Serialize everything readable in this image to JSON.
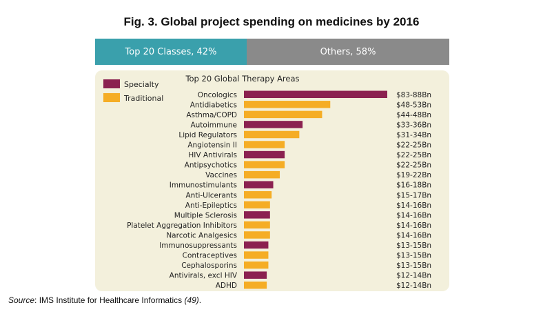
{
  "figure": {
    "title": "Fig. 3. Global project spending on medicines by 2016",
    "source_label": "Source",
    "source_text": ": IMS Institute for Healthcare Informatics ",
    "source_ref": "(49)",
    "source_end": "."
  },
  "split": {
    "left_label": "Top 20 Classes, 42%",
    "right_label": "Others, 58%",
    "left_color": "#3aa0ac",
    "right_color": "#8a8a8a"
  },
  "colors": {
    "Specialty": "#8b2150",
    "Traditional": "#f5ad25"
  },
  "chart_data": {
    "type": "bar",
    "orientation": "horizontal",
    "title": "Top 20 Global Therapy Areas",
    "legend": [
      "Specialty",
      "Traditional"
    ],
    "legend_position": "top-left",
    "categories": [
      "Oncologics",
      "Antidiabetics",
      "Asthma/COPD",
      "Autoimmune",
      "Lipid Regulators",
      "Angiotensin II",
      "HIV Antivirals",
      "Antipsychotics",
      "Vaccines",
      "Immunostimulants",
      "Anti-Ulcerants",
      "Anti-Epileptics",
      "Multiple Sclerosis",
      "Platelet Aggregation Inhibitors",
      "Narcotic Analgesics",
      "Immunosuppressants",
      "Contraceptives",
      "Cephalosporins",
      "Antivirals, excl HIV",
      "ADHD"
    ],
    "values": [
      88,
      53,
      48,
      36,
      34,
      25,
      25,
      25,
      22,
      18,
      17,
      16,
      16,
      16,
      16,
      15,
      15,
      15,
      14,
      14
    ],
    "value_labels": [
      "$83-88Bn",
      "$48-53Bn",
      "$44-48Bn",
      "$33-36Bn",
      "$31-34Bn",
      "$22-25Bn",
      "$22-25Bn",
      "$22-25Bn",
      "$19-22Bn",
      "$16-18Bn",
      "$15-17Bn",
      "$14-16Bn",
      "$14-16Bn",
      "$14-16Bn",
      "$14-16Bn",
      "$13-15Bn",
      "$13-15Bn",
      "$13-15Bn",
      "$12-14Bn",
      "$12-14Bn"
    ],
    "types": [
      "Specialty",
      "Traditional",
      "Traditional",
      "Specialty",
      "Traditional",
      "Traditional",
      "Specialty",
      "Traditional",
      "Traditional",
      "Specialty",
      "Traditional",
      "Traditional",
      "Specialty",
      "Traditional",
      "Traditional",
      "Specialty",
      "Traditional",
      "Traditional",
      "Specialty",
      "Traditional"
    ],
    "xlim": [
      0,
      88
    ],
    "grid": false
  }
}
